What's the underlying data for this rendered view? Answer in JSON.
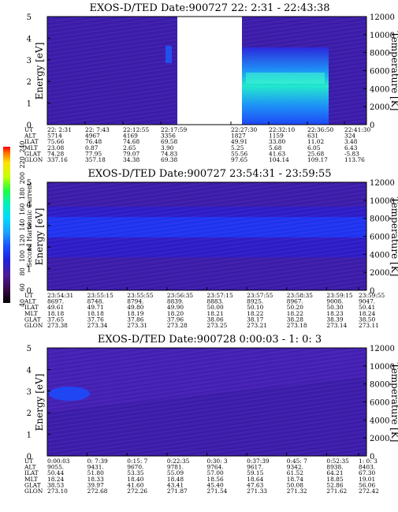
{
  "colors": {
    "background_fill": "#3c1ea8",
    "gap_fill": "#ffffff",
    "colorbar": [
      "#000000",
      "#3a0a4a",
      "#4b1b9a",
      "#2020d8",
      "#1a4cff",
      "#1aa0ff",
      "#00d8ff",
      "#00f0c0",
      "#20ff40",
      "#c8ff00",
      "#ffe000",
      "#ff7000",
      "#ff0000"
    ]
  },
  "colorbar": {
    "label": "Second Harmonic Current",
    "ticks": [
      "40",
      "60",
      "80",
      "100",
      "120",
      "140",
      "160",
      "180",
      "200",
      "220",
      "240"
    ]
  },
  "chart_data": [
    {
      "type": "heatmap",
      "title": "EXOS-D/TED   Date:900727  22: 2:31 - 22:43:38",
      "ylabel": "Energy [eV]",
      "ylabel_right": "Temperature [K]",
      "ylim": [
        0,
        5
      ],
      "ylim_right": [
        0,
        12000
      ],
      "y_ticks": [
        "0",
        "1",
        "2",
        "3",
        "4",
        "5"
      ],
      "y_ticks_right": [
        "0",
        "2000",
        "4000",
        "6000",
        "8000",
        "10000",
        "12000"
      ],
      "data_gap": "no data between 22:17:59 and 22:27:30",
      "intensity_features": [
        {
          "time": "22:27:30 - 22:41:30",
          "energy_ev": [
            0,
            3
          ],
          "level": "high, peak about 2 eV"
        },
        {
          "time": "22:12:55",
          "energy_ev": [
            3,
            3.5
          ],
          "level": "moderate"
        }
      ],
      "orbit_labels": [
        "UT",
        "ALT",
        "ILAT",
        "MLT",
        "GLAT",
        "GLON"
      ],
      "orbit_columns": [
        [
          "22: 2:31",
          "5714",
          "75.66",
          "23.08",
          "74.28",
          "337.16"
        ],
        [
          "22: 7:43",
          "4967",
          "76.48",
          "0.87",
          "77.95",
          "357.18"
        ],
        [
          "22:12:55",
          "4169",
          "74.68",
          "2.65",
          "79.07",
          "34.38"
        ],
        [
          "22:17:59",
          "3356",
          "69.58",
          "3.90",
          "74.83",
          "69.38"
        ],
        [
          "22:27:30",
          "1827",
          "49.91",
          "5.25",
          "55.56",
          "97.65"
        ],
        [
          "22:32:10",
          "1159",
          "33.80",
          "5.68",
          "41.63",
          "104.14"
        ],
        [
          "22:36:50",
          "631",
          "11.02",
          "6.05",
          "25.68",
          "109.17"
        ],
        [
          "22:41:30",
          "324",
          "3.48",
          "6.43",
          "-5.83",
          "113.76"
        ]
      ]
    },
    {
      "type": "heatmap",
      "title": "EXOS-D/TED   Date:900727  23:54:31 - 23:59:55",
      "ylabel": "Energy [eV]",
      "ylabel_right": "Temperature [K]",
      "ylim": [
        0,
        5
      ],
      "ylim_right": [
        0,
        12000
      ],
      "y_ticks": [
        "0",
        "1",
        "2",
        "3",
        "4",
        "5"
      ],
      "y_ticks_right": [
        "0",
        "2000",
        "4000",
        "6000",
        "8000",
        "10000",
        "12000"
      ],
      "intensity_features": [
        {
          "time": "23:54:31 - 23:59:55",
          "energy_ev": [
            2.4,
            3.4
          ],
          "level": "moderate, continuous band near 3 eV"
        }
      ],
      "orbit_labels": [
        "UT",
        "ALT",
        "ILAT",
        "MLT",
        "GLAT",
        "GLON"
      ],
      "orbit_columns": [
        [
          "23:54:31",
          "8697.",
          "49.61",
          "18.18",
          "37.65",
          "273.38"
        ],
        [
          "23:55:15",
          "8748.",
          "49.71",
          "18.18",
          "37.76",
          "273.34"
        ],
        [
          "23:55:55",
          "8794.",
          "49.80",
          "18.19",
          "37.86",
          "273.31"
        ],
        [
          "23:56:35",
          "8839.",
          "49.90",
          "18.20",
          "37.96",
          "273.28"
        ],
        [
          "23:57:15",
          "8883.",
          "50.00",
          "18.21",
          "38.06",
          "273.25"
        ],
        [
          "23:57:55",
          "8925.",
          "50.10",
          "18.22",
          "38.17",
          "273.21"
        ],
        [
          "23:58:35",
          "8967.",
          "50.20",
          "18.22",
          "38.28",
          "273.18"
        ],
        [
          "23:59:15",
          "9008.",
          "50.30",
          "18.23",
          "38.39",
          "273.14"
        ],
        [
          "23:59:55",
          "9047.",
          "50.41",
          "18.24",
          "38.50",
          "273.11"
        ]
      ]
    },
    {
      "type": "heatmap",
      "title": "EXOS-D/TED   Date:900728  0:00:03 - 1: 0: 3",
      "ylabel": "Energy [eV]",
      "ylabel_right": "Temperature [K]",
      "ylim": [
        0,
        5
      ],
      "ylim_right": [
        0,
        12000
      ],
      "y_ticks": [
        "0",
        "1",
        "2",
        "3",
        "4",
        "5"
      ],
      "y_ticks_right": [
        "0",
        "2000",
        "4000",
        "6000",
        "8000",
        "10000",
        "12000"
      ],
      "intensity_features": [
        {
          "time": "0:00:03 - 0: 7:39",
          "energy_ev": [
            2.6,
            3.3
          ],
          "level": "moderate"
        }
      ],
      "orbit_labels": [
        "UT",
        "ALT",
        "ILAT",
        "MLT",
        "GLAT",
        "GLON"
      ],
      "orbit_columns": [
        [
          "0:00:03",
          "9055.",
          "50.44",
          "18.24",
          "38.53",
          "273.10"
        ],
        [
          "0: 7:39",
          "9431.",
          "51.80",
          "18.33",
          "39.97",
          "272.68"
        ],
        [
          "0:15: 7",
          "9670.",
          "53.35",
          "18.40",
          "41.60",
          "272.26"
        ],
        [
          "0:22:35",
          "9781.",
          "55.09",
          "18.48",
          "43.41",
          "271.87"
        ],
        [
          "0:30: 3",
          "9764.",
          "57.00",
          "18.56",
          "45.40",
          "271.54"
        ],
        [
          "0:37:39",
          "9617.",
          "59.15",
          "18.64",
          "47.63",
          "271.33"
        ],
        [
          "0:45: 7",
          "9342.",
          "61.52",
          "18.74",
          "50.08",
          "271.32"
        ],
        [
          "0:52:35",
          "8938.",
          "64.21",
          "18.85",
          "52.86",
          "271.62"
        ],
        [
          "1: 0: 3",
          "8403.",
          "67.30",
          "19.01",
          "56.06",
          "272.42"
        ]
      ]
    }
  ]
}
